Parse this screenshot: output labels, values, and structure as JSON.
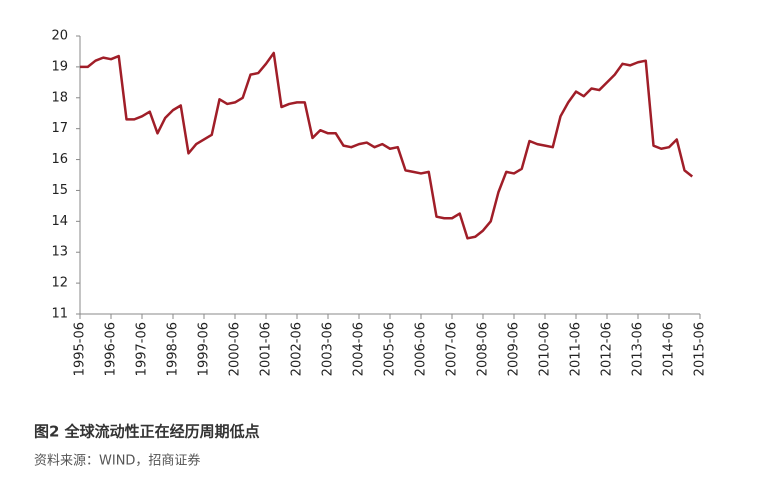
{
  "chart_data": {
    "type": "line",
    "caption": "图2  全球流动性正在经历周期低点",
    "source": "资料来源：WIND，招商证券",
    "categories": [
      "1995-06",
      null,
      null,
      null,
      "1996-06",
      null,
      null,
      null,
      "1997-06",
      null,
      null,
      null,
      "1998-06",
      null,
      null,
      null,
      "1999-06",
      null,
      null,
      null,
      "2000-06",
      null,
      null,
      null,
      "2001-06",
      null,
      null,
      null,
      "2002-06",
      null,
      null,
      null,
      "2003-06",
      null,
      null,
      null,
      "2004-06",
      null,
      null,
      null,
      "2005-06",
      null,
      null,
      null,
      "2006-06",
      null,
      null,
      null,
      "2007-06",
      null,
      null,
      null,
      "2008-06",
      null,
      null,
      null,
      "2009-06",
      null,
      null,
      null,
      "2010-06",
      null,
      null,
      null,
      "2011-06",
      null,
      null,
      null,
      "2012-06",
      null,
      null,
      null,
      "2013-06",
      null,
      null,
      null,
      "2014-06",
      null,
      null,
      null,
      "2015-06"
    ],
    "series": [
      {
        "color": "#a01e28",
        "values": [
          19.0,
          19.0,
          19.2,
          19.3,
          19.25,
          19.35,
          17.3,
          17.3,
          17.4,
          17.55,
          16.85,
          17.35,
          17.6,
          17.75,
          16.2,
          16.5,
          16.65,
          16.8,
          17.95,
          17.8,
          17.85,
          18.0,
          18.75,
          18.8,
          19.1,
          19.45,
          17.7,
          17.8,
          17.85,
          17.85,
          16.7,
          16.95,
          16.85,
          16.85,
          16.45,
          16.4,
          16.5,
          16.55,
          16.4,
          16.5,
          16.35,
          16.4,
          15.65,
          15.6,
          15.55,
          15.6,
          14.15,
          14.1,
          14.1,
          14.25,
          13.45,
          13.5,
          13.7,
          14.0,
          14.95,
          15.6,
          15.55,
          15.7,
          16.6,
          16.5,
          16.45,
          16.4,
          17.4,
          17.85,
          18.2,
          18.05,
          18.3,
          18.25,
          18.5,
          18.75,
          19.1,
          19.05,
          19.15,
          19.2,
          16.45,
          16.35,
          16.4,
          16.65,
          15.65,
          15.45,
          null
        ]
      }
    ],
    "ylim": [
      11,
      20
    ],
    "yticks": [
      11,
      12,
      13,
      14,
      15,
      16,
      17,
      18,
      19,
      20
    ],
    "grid": false
  }
}
